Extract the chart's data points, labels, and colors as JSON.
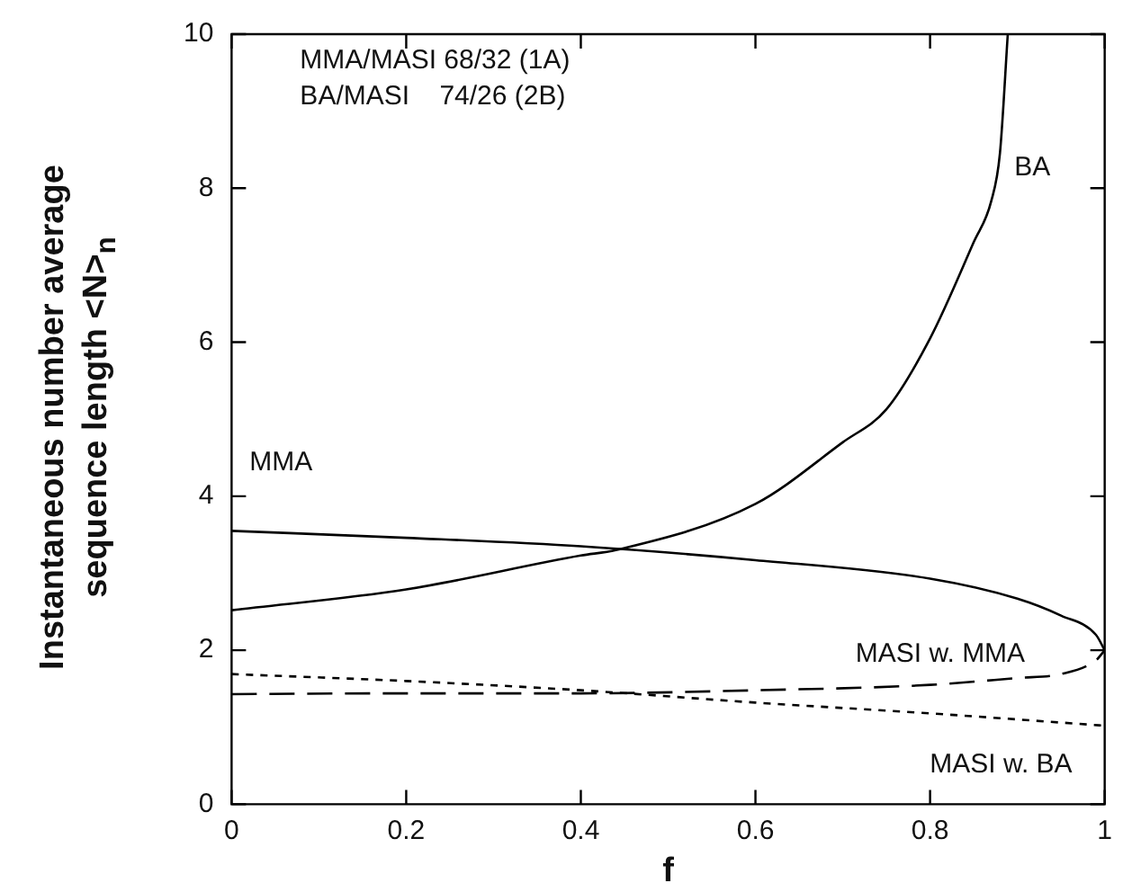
{
  "chart_data": {
    "type": "line",
    "xlabel": "f",
    "ylabel": "Instantaneous number average sequence length <N>$_{n}$",
    "annotations": [
      "MMA/MASI 68/32 (1A)",
      "BA/MASI    74/26 (2B)"
    ],
    "xlim": [
      0,
      1
    ],
    "ylim": [
      0,
      10
    ],
    "xticks": [
      0,
      0.2,
      0.4,
      0.6,
      0.8,
      1
    ],
    "yticks": [
      0,
      2,
      4,
      6,
      8,
      10
    ],
    "grid": false,
    "legend": false,
    "marker": "none",
    "series": [
      {
        "name": "BA",
        "color": "#000000",
        "line_style": "solid",
        "x": [
          0,
          0.2,
          0.4,
          0.44,
          0.6,
          0.7,
          0.75,
          0.8,
          0.85,
          0.87,
          0.88,
          0.889
        ],
        "values": [
          2.52,
          2.79,
          3.23,
          3.3,
          3.9,
          4.7,
          5.13,
          6.05,
          7.3,
          7.83,
          8.45,
          10
        ]
      },
      {
        "name": "MMA",
        "color": "#000000",
        "line_style": "solid",
        "x": [
          0,
          0.2,
          0.4,
          0.6,
          0.8,
          0.9,
          0.95,
          0.99,
          1
        ],
        "values": [
          3.55,
          3.46,
          3.35,
          3.17,
          2.93,
          2.67,
          2.45,
          2.2,
          2.0
        ]
      },
      {
        "name": "MASI w. MMA",
        "color": "#000000",
        "line_style": "dashed",
        "x": [
          0,
          0.2,
          0.4,
          0.6,
          0.8,
          0.9,
          0.95,
          0.99,
          1
        ],
        "values": [
          1.43,
          1.44,
          1.44,
          1.48,
          1.55,
          1.64,
          1.69,
          1.87,
          2.0
        ]
      },
      {
        "name": "MASI w. BA",
        "color": "#000000",
        "line_style": "dotted",
        "x": [
          0,
          0.2,
          0.4,
          0.6,
          0.8,
          1
        ],
        "values": [
          1.69,
          1.6,
          1.48,
          1.32,
          1.18,
          1.02
        ]
      }
    ]
  }
}
